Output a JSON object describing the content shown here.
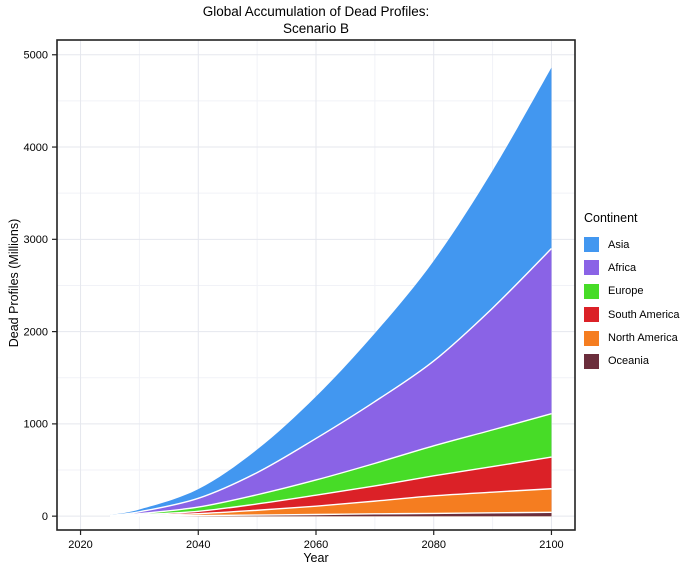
{
  "title": {
    "line1": "Global Accumulation of Dead Profiles:",
    "line2": "Scenario B"
  },
  "chart_data": {
    "type": "area",
    "stacked": true,
    "title": "Global Accumulation of Dead Profiles: Scenario B",
    "xlabel": "Year",
    "ylabel": "Dead Profiles (Millions)",
    "legend_title": "Continent",
    "legend_position": "right",
    "grid": true,
    "units": "Millions",
    "x": [
      2025,
      2030,
      2040,
      2050,
      2060,
      2070,
      2080,
      2090,
      2100
    ],
    "x_ticks": [
      2020,
      2040,
      2060,
      2080,
      2100
    ],
    "y_ticks": [
      0,
      1000,
      2000,
      3000,
      4000,
      5000
    ],
    "xlim": [
      2016,
      2104
    ],
    "ylim": [
      -150,
      5160
    ],
    "stack_order": "top-to-bottom as listed (Asia on top, Oceania at bottom)",
    "series": [
      {
        "name": "Asia",
        "color": "#4297F0",
        "values": [
          5,
          25,
          100,
          250,
          455,
          740,
          1085,
          1490,
          1960
        ]
      },
      {
        "name": "Africa",
        "color": "#8A63E6",
        "values": [
          4,
          20,
          95,
          240,
          450,
          670,
          920,
          1320,
          1790
        ]
      },
      {
        "name": "Europe",
        "color": "#47DC27",
        "values": [
          2,
          10,
          45,
          100,
          165,
          245,
          325,
          398,
          470
        ]
      },
      {
        "name": "South America",
        "color": "#DB2127",
        "values": [
          1,
          8,
          26,
          68,
          119,
          164,
          217,
          277,
          343
        ]
      },
      {
        "name": "North America",
        "color": "#F57D20",
        "values": [
          1,
          7,
          21,
          52,
          90,
          138,
          190,
          224,
          255
        ]
      },
      {
        "name": "Oceania",
        "color": "#6B2E3C",
        "values": [
          0.5,
          2,
          6,
          12,
          18,
          25,
          30,
          36,
          42
        ]
      }
    ]
  },
  "style_colors": {
    "panel_border": "#222222",
    "major_grid": "#e5e7ee",
    "minor_grid": "#f1f2f7",
    "area_separator": "#ffffff",
    "text": "#000000"
  }
}
